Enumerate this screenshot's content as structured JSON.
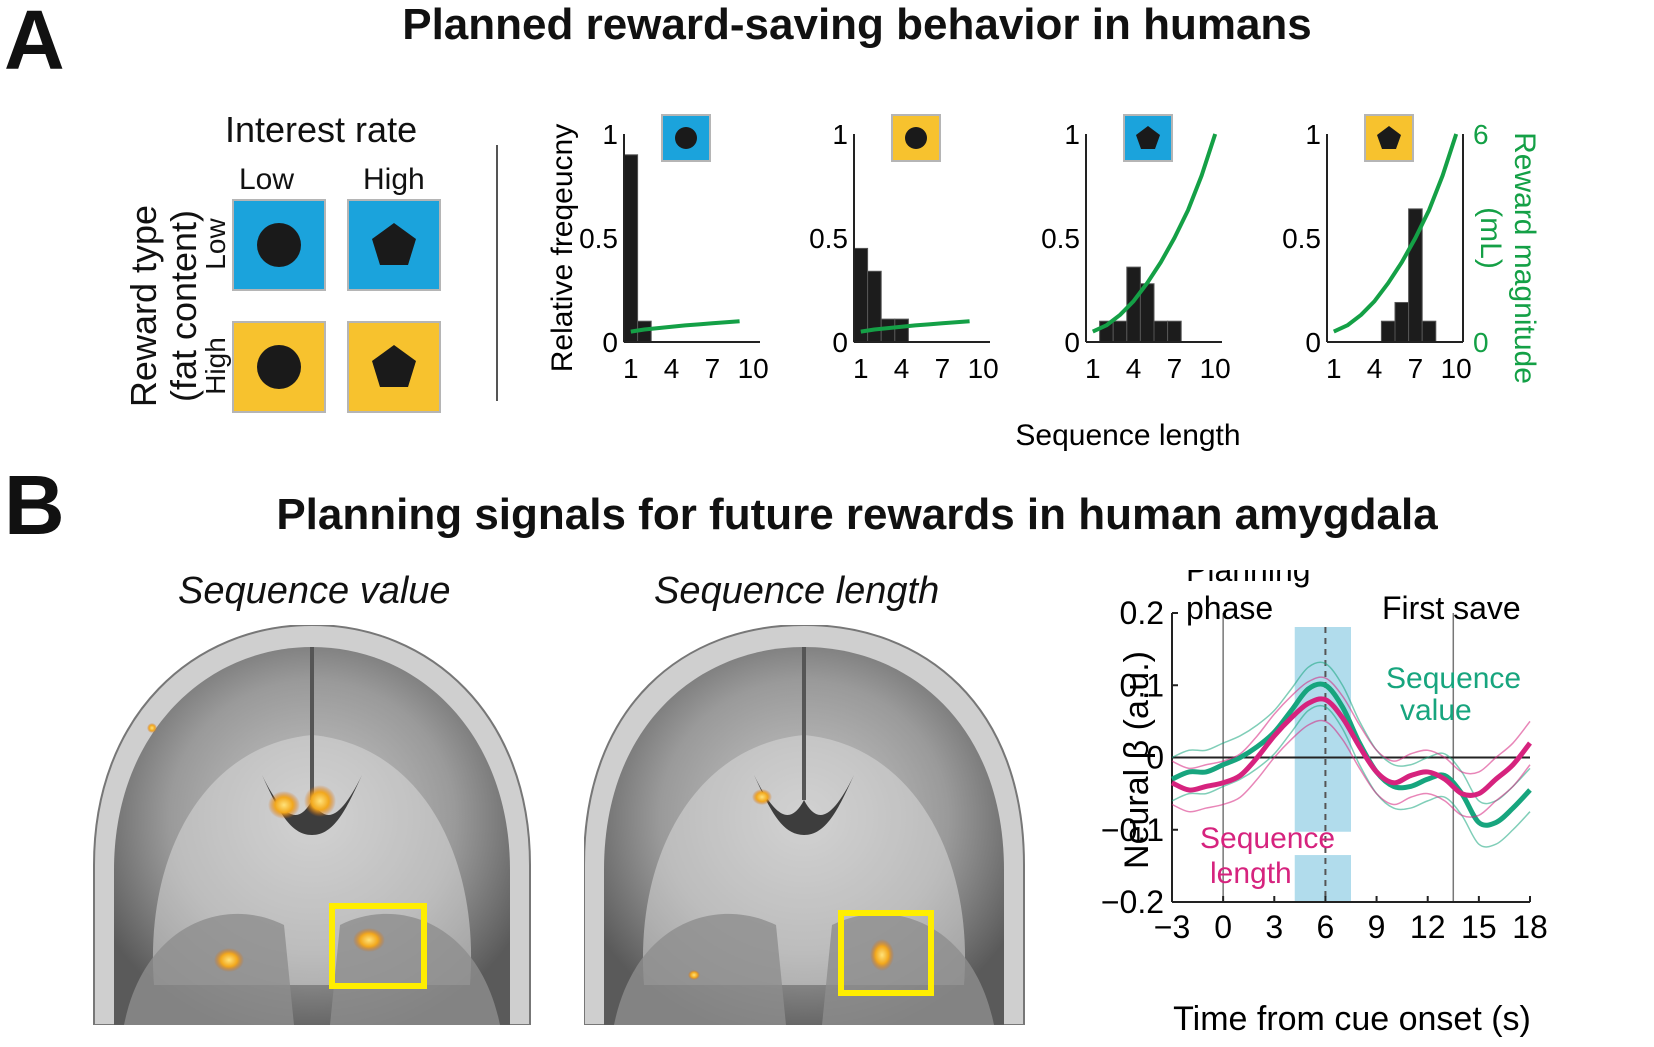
{
  "panel_a": {
    "letter": "A",
    "title": "Planned reward-saving behavior in humans",
    "design": {
      "col_header": "Interest rate",
      "row_header_line1": "Reward type",
      "row_header_line2": "(fat content)",
      "col_labels": [
        "Low",
        "High"
      ],
      "row_labels": [
        "Low",
        "High"
      ],
      "row_colors": [
        "#1ba3dc",
        "#f7c22e"
      ],
      "shape_icons": [
        "circle-icon",
        "pentagon-icon"
      ]
    }
  },
  "panel_b": {
    "letter": "B",
    "title": "Planning signals for future rewards in human amygdala",
    "brain_titles": [
      "Sequence value",
      "Sequence length"
    ],
    "highlight_color": "#ffee00"
  },
  "chart_data": [
    {
      "type": "bar",
      "ylabel": "Relative freqeucny",
      "xlabel": "Sequence length",
      "right_ylabel": "Reward magnitude (mL)",
      "xlim": [
        0.5,
        10.5
      ],
      "ylim": [
        0,
        1
      ],
      "right_ylim": [
        0,
        6
      ],
      "x_ticks": [
        1,
        4,
        7,
        10
      ],
      "y_ticks": [
        0,
        0.5,
        1
      ],
      "right_y_ticks": [
        0,
        6
      ],
      "reward_color": "#14a046",
      "bar_color": "#1c1c1c",
      "subplots": [
        {
          "icon_bg": "#1ba3dc",
          "icon": "circle-icon",
          "bars": [
            0.9,
            0.1,
            0,
            0,
            0,
            0,
            0,
            0,
            0
          ],
          "curve_x": [
            1,
            2,
            3,
            4,
            5,
            6,
            7,
            8,
            9
          ],
          "curve_y": [
            0.3,
            0.36,
            0.4,
            0.44,
            0.48,
            0.51,
            0.54,
            0.57,
            0.6
          ]
        },
        {
          "icon_bg": "#f7c22e",
          "icon": "circle-icon",
          "bars": [
            0.45,
            0.34,
            0.11,
            0.11,
            0,
            0,
            0,
            0,
            0
          ],
          "curve_x": [
            1,
            2,
            3,
            4,
            5,
            6,
            7,
            8,
            9
          ],
          "curve_y": [
            0.3,
            0.36,
            0.4,
            0.44,
            0.48,
            0.51,
            0.54,
            0.57,
            0.6
          ]
        },
        {
          "icon_bg": "#1ba3dc",
          "icon": "pentagon-icon",
          "bars": [
            0,
            0.1,
            0.1,
            0.36,
            0.28,
            0.1,
            0.1,
            0,
            0
          ],
          "curve_x": [
            1,
            2,
            3,
            4,
            5,
            6,
            7,
            8,
            9,
            10
          ],
          "curve_y": [
            0.3,
            0.48,
            0.78,
            1.18,
            1.7,
            2.3,
            3.0,
            3.8,
            4.8,
            6.0
          ]
        },
        {
          "icon_bg": "#f7c22e",
          "icon": "pentagon-icon",
          "bars": [
            0,
            0,
            0,
            0,
            0.1,
            0.19,
            0.64,
            0.1,
            0
          ],
          "curve_x": [
            1,
            2,
            3,
            4,
            5,
            6,
            7,
            8,
            9,
            10
          ],
          "curve_y": [
            0.3,
            0.48,
            0.78,
            1.18,
            1.7,
            2.3,
            3.0,
            3.8,
            4.8,
            6.0
          ]
        }
      ]
    },
    {
      "type": "line",
      "xlabel": "Time from cue onset (s)",
      "ylabel": "Neural β (a.u.)",
      "xlim": [
        -3,
        18
      ],
      "ylim": [
        -0.2,
        0.2
      ],
      "x_ticks": [
        -3,
        0,
        3,
        6,
        9,
        12,
        15,
        18
      ],
      "x_tick_labels": [
        "−3",
        "0",
        "3",
        "6",
        "9",
        "12",
        "15",
        "18"
      ],
      "y_ticks": [
        -0.2,
        -0.1,
        0,
        0.1,
        0.2
      ],
      "y_tick_labels": [
        "−0.2",
        "−0.1",
        "0",
        "0.1",
        "0.2"
      ],
      "shade": {
        "x0": 4.2,
        "x1": 7.5,
        "color": "#a8d8ea"
      },
      "peak_dashed_x": 6,
      "vlines": [
        0,
        13.5
      ],
      "annotations": {
        "planning": [
          "Planning",
          "phase"
        ],
        "first_save": "First save"
      },
      "series": [
        {
          "name": "Sequence value",
          "label_lines": [
            "Sequence",
            "value"
          ],
          "color": "#17a57e",
          "x": [
            -3,
            -2,
            -1,
            0,
            1,
            2,
            3,
            4,
            5,
            6,
            7,
            8,
            9,
            10,
            11,
            12,
            13,
            14,
            15,
            16,
            17,
            18
          ],
          "y": [
            -0.03,
            -0.02,
            -0.02,
            -0.01,
            0.0,
            0.015,
            0.035,
            0.065,
            0.095,
            0.1,
            0.07,
            0.02,
            -0.02,
            -0.04,
            -0.04,
            -0.03,
            -0.025,
            -0.05,
            -0.09,
            -0.09,
            -0.07,
            -0.045
          ]
        },
        {
          "name": "Sequence length",
          "label_lines": [
            "Sequence",
            "length"
          ],
          "color": "#d6237e",
          "x": [
            -3,
            -2,
            -1,
            0,
            1,
            2,
            3,
            4,
            5,
            6,
            7,
            8,
            9,
            10,
            11,
            12,
            13,
            14,
            15,
            16,
            17,
            18
          ],
          "y": [
            -0.035,
            -0.045,
            -0.04,
            -0.035,
            -0.025,
            0.0,
            0.03,
            0.055,
            0.075,
            0.08,
            0.055,
            0.015,
            -0.02,
            -0.035,
            -0.025,
            -0.02,
            -0.03,
            -0.05,
            -0.05,
            -0.03,
            -0.01,
            0.02
          ]
        }
      ]
    }
  ]
}
